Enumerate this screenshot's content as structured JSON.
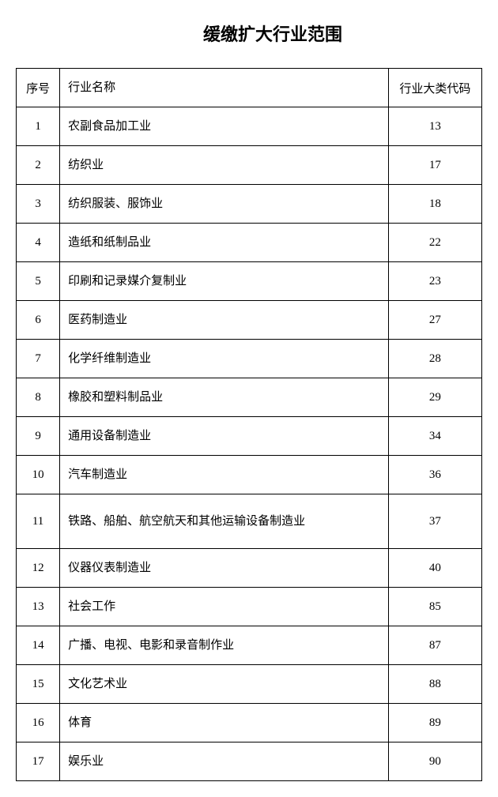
{
  "title": "缓缴扩大行业范围",
  "table": {
    "headers": {
      "seq": "序号",
      "name": "行业名称",
      "code": "行业大类代码"
    },
    "rows": [
      {
        "seq": "1",
        "name": "农副食品加工业",
        "code": "13"
      },
      {
        "seq": "2",
        "name": "纺织业",
        "code": "17"
      },
      {
        "seq": "3",
        "name": "纺织服装、服饰业",
        "code": "18"
      },
      {
        "seq": "4",
        "name": "造纸和纸制品业",
        "code": "22"
      },
      {
        "seq": "5",
        "name": "印刷和记录媒介复制业",
        "code": "23"
      },
      {
        "seq": "6",
        "name": "医药制造业",
        "code": "27"
      },
      {
        "seq": "7",
        "name": "化学纤维制造业",
        "code": "28"
      },
      {
        "seq": "8",
        "name": "橡胶和塑料制品业",
        "code": "29"
      },
      {
        "seq": "9",
        "name": "通用设备制造业",
        "code": "34"
      },
      {
        "seq": "10",
        "name": "汽车制造业",
        "code": "36"
      },
      {
        "seq": "11",
        "name": "铁路、船舶、航空航天和其他运输设备制造业",
        "code": "37",
        "wrap": true
      },
      {
        "seq": "12",
        "name": "仪器仪表制造业",
        "code": "40"
      },
      {
        "seq": "13",
        "name": "社会工作",
        "code": "85"
      },
      {
        "seq": "14",
        "name": "广播、电视、电影和录音制作业",
        "code": "87"
      },
      {
        "seq": "15",
        "name": "文化艺术业",
        "code": "88"
      },
      {
        "seq": "16",
        "name": "体育",
        "code": "89"
      },
      {
        "seq": "17",
        "name": "娱乐业",
        "code": "90"
      }
    ]
  }
}
